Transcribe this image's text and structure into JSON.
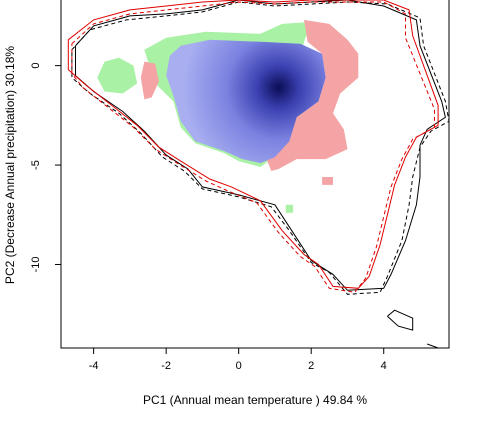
{
  "chart_data": {
    "type": "heatmap",
    "title": "",
    "xlabel": "PC1 (Annual mean temperature ) 49.84 %",
    "ylabel": "PC2 (Decrease Annual precipitation) 30.18%",
    "xlim": [
      -4.9,
      5.8
    ],
    "ylim": [
      -14.2,
      3.3
    ],
    "x_ticks": [
      -4,
      -2,
      0,
      2,
      4
    ],
    "y_ticks": [
      0,
      -5,
      -10
    ],
    "grid": false,
    "legend": "none",
    "colors": {
      "overlap_peak": "#0b0d55",
      "overlap": "#9ea6ee",
      "niche_a_only": "#a9f1a5",
      "niche_b_only": "#f4a4a4",
      "envelope_a": "#000000",
      "envelope_b": "#e00000"
    },
    "regions": [
      {
        "role": "overlap",
        "polygon": [
          [
            -1.6,
            1.0
          ],
          [
            -0.8,
            1.3
          ],
          [
            0.6,
            1.2
          ],
          [
            1.7,
            1.1
          ],
          [
            2.3,
            0.6
          ],
          [
            2.4,
            -0.6
          ],
          [
            2.2,
            -1.8
          ],
          [
            1.6,
            -2.6
          ],
          [
            1.4,
            -3.8
          ],
          [
            1.0,
            -4.6
          ],
          [
            0.6,
            -4.9
          ],
          [
            0.1,
            -4.7
          ],
          [
            -0.4,
            -4.3
          ],
          [
            -1.2,
            -3.8
          ],
          [
            -1.6,
            -2.8
          ],
          [
            -1.8,
            -1.5
          ],
          [
            -2.0,
            -0.5
          ],
          [
            -1.9,
            0.5
          ]
        ],
        "peak": [
          1.1,
          -1.1
        ]
      },
      {
        "role": "niche_a_only",
        "polygon": [
          [
            -2.0,
            1.4
          ],
          [
            -0.9,
            1.7
          ],
          [
            0.6,
            1.6
          ],
          [
            1.2,
            2.1
          ],
          [
            2.0,
            2.2
          ],
          [
            1.8,
            1.2
          ],
          [
            1.2,
            -3.6
          ],
          [
            0.9,
            -4.7
          ],
          [
            0.6,
            -5.1
          ],
          [
            0.0,
            -4.8
          ],
          [
            -0.4,
            -4.4
          ],
          [
            -1.2,
            -3.9
          ],
          [
            -1.6,
            -3.1
          ],
          [
            -1.8,
            -1.8
          ],
          [
            -2.3,
            -0.9
          ],
          [
            -2.5,
            0.2
          ],
          [
            -2.6,
            0.8
          ]
        ]
      },
      {
        "role": "niche_a_only",
        "polygon": [
          [
            -3.7,
            0.2
          ],
          [
            -3.3,
            0.4
          ],
          [
            -2.9,
            0.0
          ],
          [
            -2.8,
            -0.9
          ],
          [
            -3.2,
            -1.4
          ],
          [
            -3.7,
            -1.3
          ],
          [
            -3.9,
            -0.6
          ]
        ]
      },
      {
        "role": "niche_a_only",
        "polygon": [
          [
            1.3,
            -7.0
          ],
          [
            1.5,
            -7.0
          ],
          [
            1.5,
            -7.4
          ],
          [
            1.3,
            -7.4
          ]
        ]
      },
      {
        "role": "niche_b_only",
        "polygon": [
          [
            1.8,
            2.3
          ],
          [
            2.5,
            2.1
          ],
          [
            3.0,
            1.3
          ],
          [
            3.3,
            0.6
          ],
          [
            3.3,
            -0.6
          ],
          [
            2.8,
            -1.4
          ],
          [
            2.6,
            -2.4
          ],
          [
            2.9,
            -3.2
          ],
          [
            3.0,
            -4.2
          ],
          [
            2.4,
            -4.7
          ],
          [
            1.6,
            -4.7
          ],
          [
            1.1,
            -5.2
          ],
          [
            0.9,
            -5.3
          ],
          [
            0.7,
            -4.4
          ],
          [
            1.3,
            -3.8
          ],
          [
            1.6,
            -2.6
          ],
          [
            2.2,
            -1.8
          ],
          [
            2.4,
            -0.6
          ],
          [
            2.3,
            0.6
          ],
          [
            1.9,
            1.2
          ]
        ]
      },
      {
        "role": "niche_b_only",
        "polygon": [
          [
            -2.6,
            0.2
          ],
          [
            -2.3,
            0.1
          ],
          [
            -2.2,
            -0.8
          ],
          [
            -2.4,
            -1.6
          ],
          [
            -2.6,
            -1.7
          ],
          [
            -2.7,
            -0.6
          ]
        ]
      },
      {
        "role": "niche_b_only",
        "polygon": [
          [
            2.3,
            -5.6
          ],
          [
            2.6,
            -5.6
          ],
          [
            2.6,
            -6.0
          ],
          [
            2.3,
            -6.0
          ]
        ]
      }
    ],
    "contours": [
      {
        "color": "envelope_a",
        "dash": "solid",
        "points": [
          [
            -4.5,
            1.0
          ],
          [
            -4.0,
            2.0
          ],
          [
            -3.0,
            2.5
          ],
          [
            -2.0,
            2.6
          ],
          [
            -1.0,
            2.8
          ],
          [
            0.0,
            3.3
          ],
          [
            1.0,
            3.1
          ],
          [
            2.0,
            3.2
          ],
          [
            3.0,
            3.3
          ],
          [
            4.0,
            3.0
          ],
          [
            4.9,
            2.3
          ],
          [
            5.0,
            1.0
          ],
          [
            5.6,
            -1.8
          ],
          [
            5.7,
            -2.6
          ],
          [
            5.2,
            -3.2
          ],
          [
            5.0,
            -4.0
          ],
          [
            5.0,
            -5.6
          ],
          [
            4.9,
            -7.0
          ],
          [
            4.6,
            -8.8
          ],
          [
            4.2,
            -10.5
          ],
          [
            4.0,
            -11.2
          ],
          [
            3.0,
            -11.3
          ],
          [
            2.6,
            -10.5
          ],
          [
            2.0,
            -9.8
          ],
          [
            1.5,
            -8.4
          ],
          [
            1.0,
            -7.0
          ],
          [
            0.0,
            -6.5
          ],
          [
            -1.0,
            -6.1
          ],
          [
            -1.4,
            -5.2
          ],
          [
            -2.0,
            -4.5
          ],
          [
            -2.6,
            -3.3
          ],
          [
            -3.2,
            -2.3
          ],
          [
            -4.0,
            -1.3
          ],
          [
            -4.5,
            -0.5
          ],
          [
            -4.5,
            1.0
          ]
        ]
      },
      {
        "color": "envelope_a",
        "dash": "dashed",
        "points": [
          [
            -4.6,
            0.8
          ],
          [
            -4.1,
            1.8
          ],
          [
            -3.1,
            2.3
          ],
          [
            -2.0,
            2.5
          ],
          [
            -1.0,
            2.7
          ],
          [
            0.0,
            3.2
          ],
          [
            1.0,
            3.0
          ],
          [
            2.0,
            3.1
          ],
          [
            3.0,
            3.2
          ],
          [
            4.1,
            3.1
          ],
          [
            5.0,
            2.4
          ],
          [
            5.1,
            1.0
          ],
          [
            5.7,
            -1.8
          ],
          [
            5.8,
            -2.8
          ],
          [
            5.3,
            -3.3
          ],
          [
            5.0,
            -4.1
          ],
          [
            4.8,
            -5.6
          ],
          [
            4.7,
            -7.0
          ],
          [
            4.5,
            -8.8
          ],
          [
            4.1,
            -10.6
          ],
          [
            3.9,
            -11.4
          ],
          [
            3.0,
            -11.5
          ],
          [
            2.5,
            -10.4
          ],
          [
            2.0,
            -9.9
          ],
          [
            1.4,
            -8.3
          ],
          [
            0.9,
            -7.1
          ],
          [
            0.0,
            -6.6
          ],
          [
            -1.0,
            -6.2
          ],
          [
            -1.5,
            -5.3
          ],
          [
            -2.1,
            -4.6
          ],
          [
            -2.7,
            -3.4
          ],
          [
            -3.3,
            -2.4
          ],
          [
            -4.1,
            -1.4
          ],
          [
            -4.6,
            -0.6
          ],
          [
            -4.6,
            0.8
          ]
        ]
      },
      {
        "color": "envelope_b",
        "dash": "solid",
        "points": [
          [
            -4.7,
            1.3
          ],
          [
            -4.0,
            2.3
          ],
          [
            -3.0,
            2.8
          ],
          [
            -2.0,
            3.0
          ],
          [
            -1.0,
            3.2
          ],
          [
            0.0,
            3.3
          ],
          [
            1.0,
            3.2
          ],
          [
            2.0,
            3.3
          ],
          [
            3.0,
            3.3
          ],
          [
            4.0,
            3.3
          ],
          [
            4.7,
            2.8
          ],
          [
            4.8,
            1.5
          ],
          [
            5.5,
            -2.0
          ],
          [
            5.5,
            -3.0
          ],
          [
            4.9,
            -3.6
          ],
          [
            4.6,
            -4.6
          ],
          [
            4.3,
            -6.0
          ],
          [
            4.1,
            -7.5
          ],
          [
            3.9,
            -9.0
          ],
          [
            3.6,
            -10.6
          ],
          [
            3.3,
            -11.2
          ],
          [
            2.6,
            -11.1
          ],
          [
            2.2,
            -10.0
          ],
          [
            1.8,
            -9.5
          ],
          [
            1.2,
            -8.3
          ],
          [
            0.6,
            -6.8
          ],
          [
            -0.2,
            -6.1
          ],
          [
            -0.8,
            -5.7
          ],
          [
            -1.6,
            -4.8
          ],
          [
            -2.2,
            -4.1
          ],
          [
            -2.8,
            -3.0
          ],
          [
            -3.5,
            -2.0
          ],
          [
            -4.2,
            -1.0
          ],
          [
            -4.7,
            -0.2
          ],
          [
            -4.7,
            1.3
          ]
        ]
      },
      {
        "color": "envelope_b",
        "dash": "dashed",
        "points": [
          [
            -4.6,
            1.1
          ],
          [
            -4.0,
            2.1
          ],
          [
            -3.0,
            2.6
          ],
          [
            -2.0,
            2.8
          ],
          [
            -1.0,
            3.0
          ],
          [
            0.0,
            3.2
          ],
          [
            1.0,
            3.1
          ],
          [
            2.0,
            3.2
          ],
          [
            3.0,
            3.2
          ],
          [
            4.0,
            3.2
          ],
          [
            4.6,
            2.6
          ],
          [
            4.6,
            1.4
          ],
          [
            5.4,
            -2.2
          ],
          [
            5.4,
            -3.1
          ],
          [
            4.8,
            -3.7
          ],
          [
            4.5,
            -4.7
          ],
          [
            4.2,
            -6.1
          ],
          [
            4.0,
            -7.6
          ],
          [
            3.8,
            -9.1
          ],
          [
            3.5,
            -10.7
          ],
          [
            3.2,
            -11.4
          ],
          [
            2.5,
            -11.2
          ],
          [
            2.1,
            -10.1
          ],
          [
            1.7,
            -9.6
          ],
          [
            1.1,
            -8.4
          ],
          [
            0.5,
            -6.9
          ],
          [
            -0.3,
            -6.3
          ],
          [
            -0.9,
            -5.8
          ],
          [
            -1.7,
            -4.9
          ],
          [
            -2.3,
            -4.2
          ],
          [
            -2.9,
            -3.1
          ],
          [
            -3.6,
            -2.1
          ],
          [
            -4.3,
            -1.1
          ],
          [
            -4.6,
            -0.4
          ],
          [
            -4.6,
            1.1
          ]
        ]
      },
      {
        "color": "envelope_a",
        "dash": "solid",
        "points": [
          [
            4.1,
            -12.6
          ],
          [
            4.3,
            -12.3
          ],
          [
            4.8,
            -12.7
          ],
          [
            4.8,
            -13.3
          ],
          [
            4.4,
            -13.1
          ],
          [
            4.1,
            -12.6
          ]
        ]
      },
      {
        "color": "envelope_a",
        "dash": "solid",
        "points": [
          [
            5.2,
            -14.0
          ],
          [
            5.5,
            -14.2
          ]
        ]
      }
    ]
  }
}
